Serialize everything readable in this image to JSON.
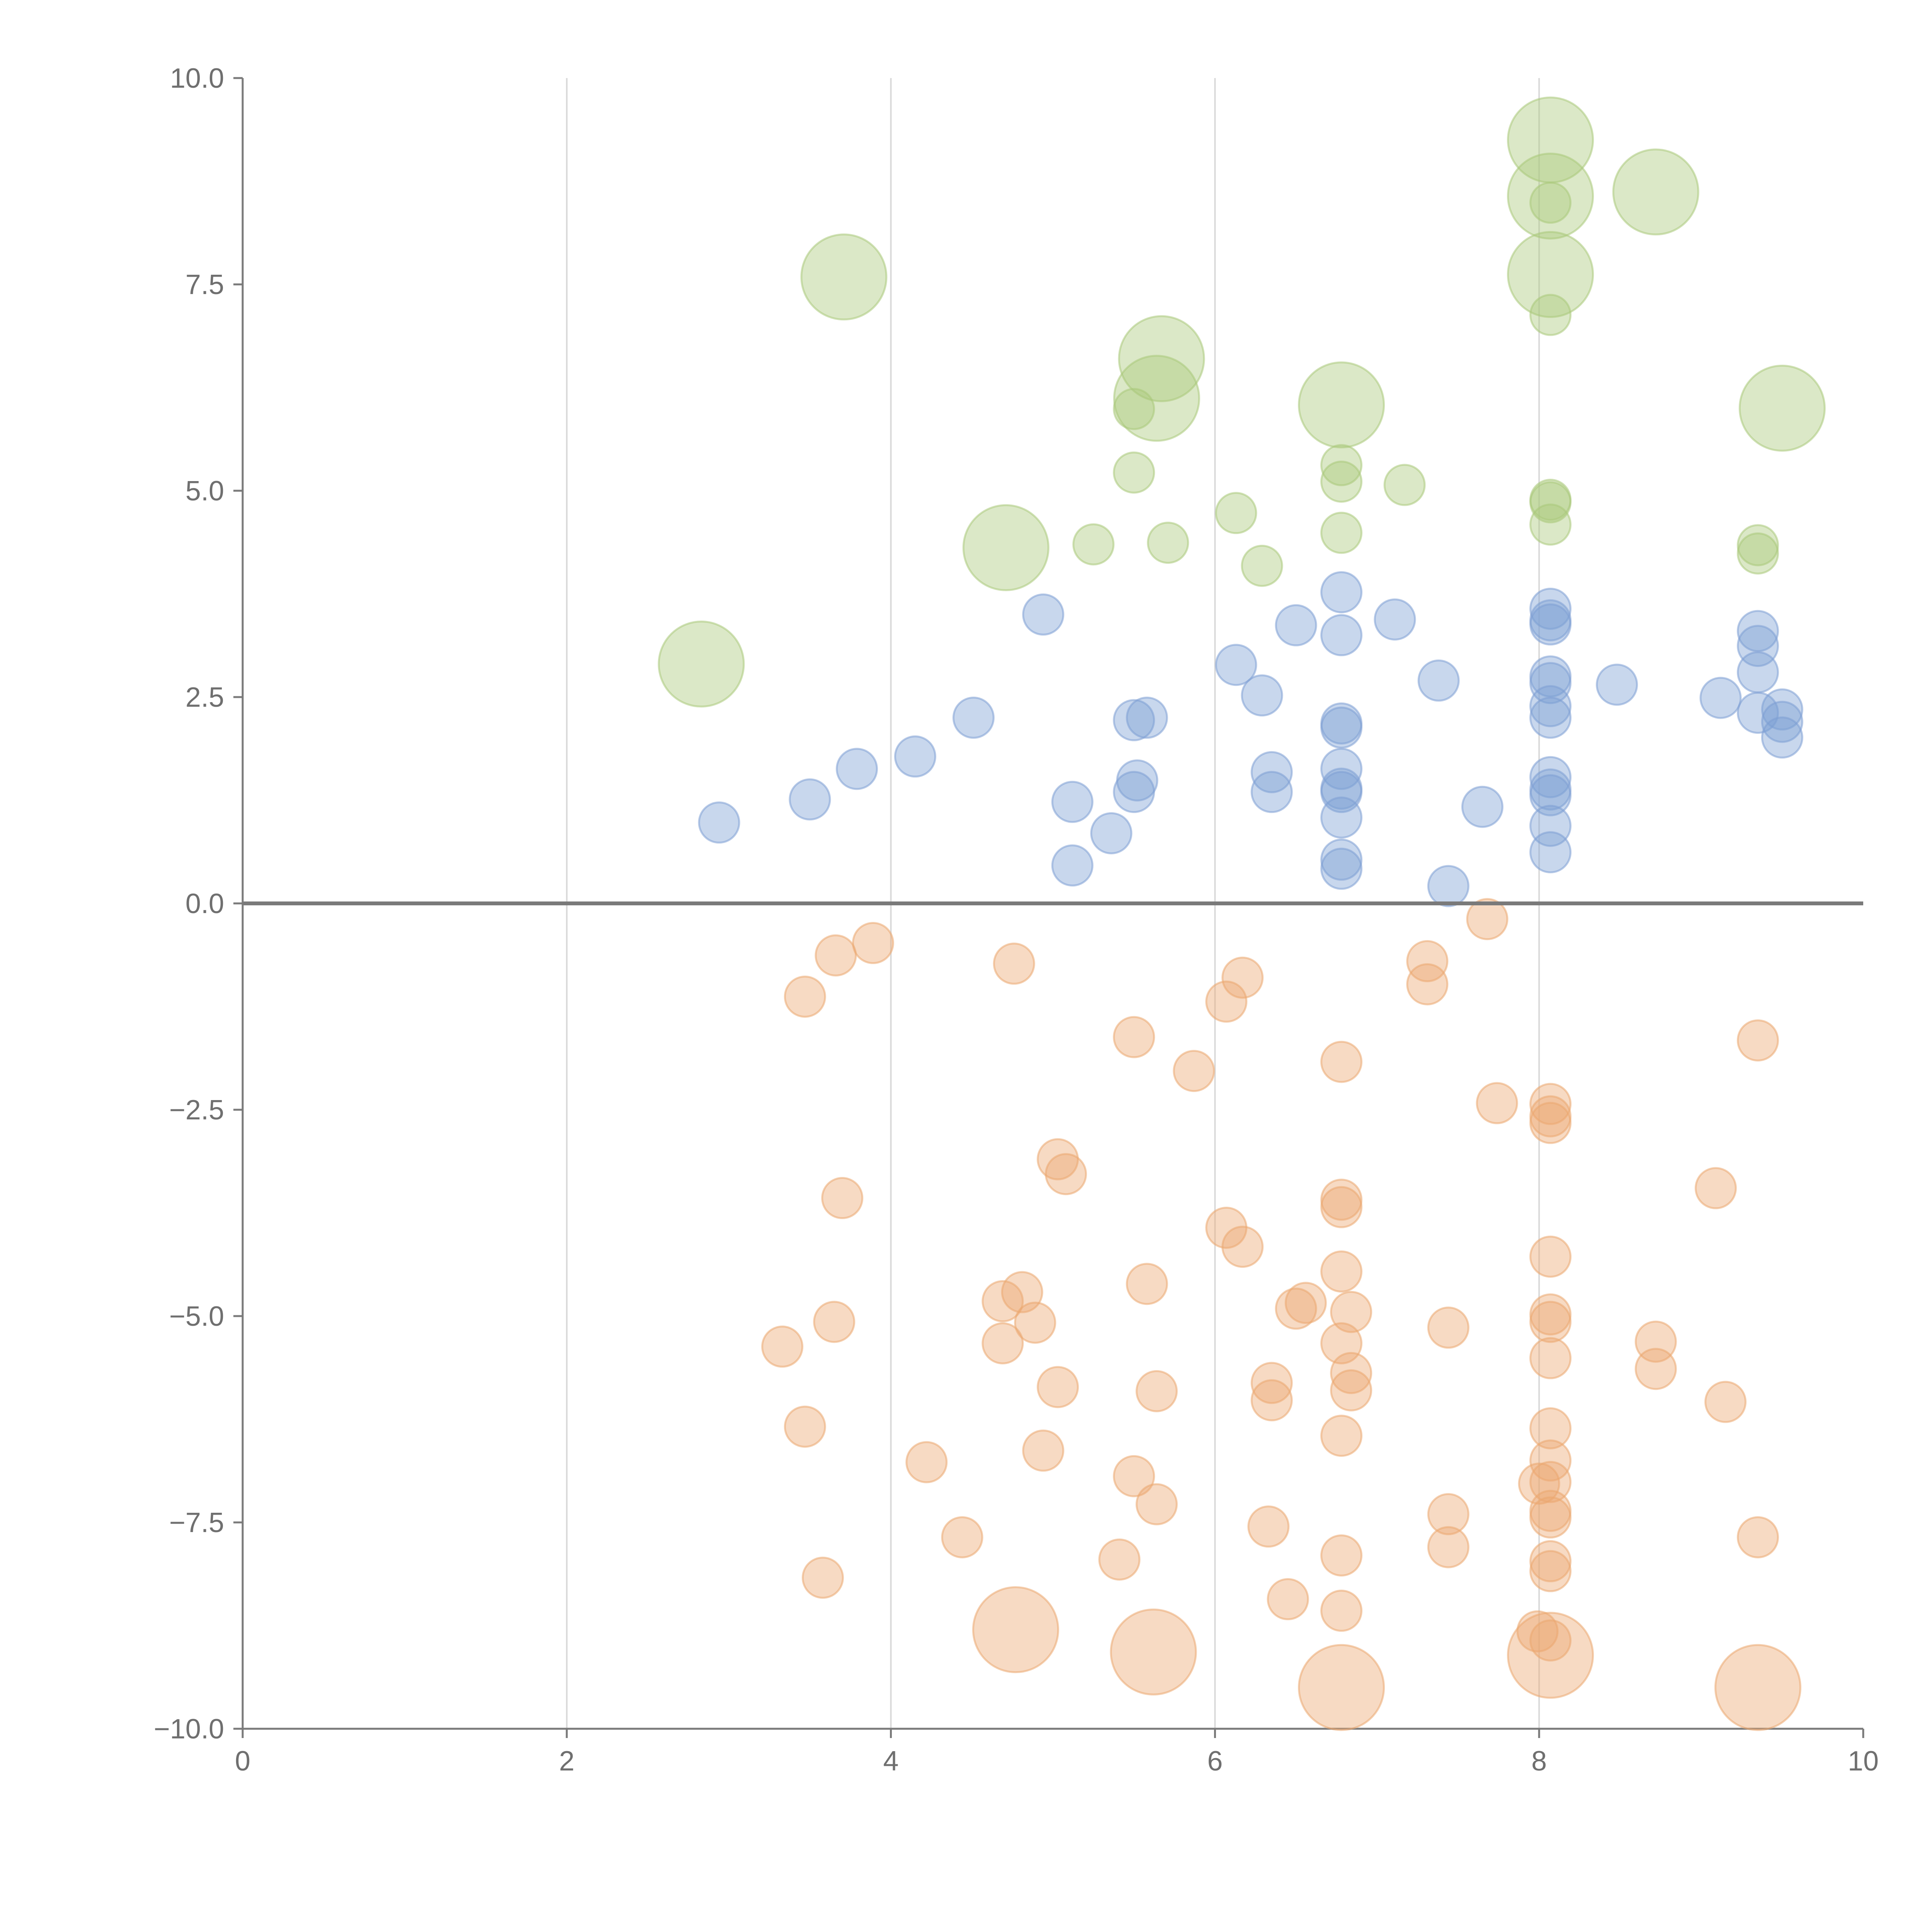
{
  "chart_data": {
    "type": "scatter",
    "title": "",
    "xlabel": "",
    "ylabel": "",
    "xlim": [
      0,
      10
    ],
    "ylim": [
      -10,
      10
    ],
    "x_ticks": [
      "0",
      "2",
      "4",
      "6",
      "8",
      "10"
    ],
    "x_tick_values": [
      0,
      2,
      4,
      6,
      8,
      10
    ],
    "y_ticks": [
      "10.0",
      "7.5",
      "5.0",
      "2.5",
      "0.0",
      "−2.5",
      "−5.0",
      "−7.5",
      "−10.0"
    ],
    "y_tick_values": [
      10,
      7.5,
      5,
      2.5,
      0,
      -2.5,
      -5,
      -7.5,
      -10
    ],
    "grid": "vertical",
    "reference_line": 0,
    "series": [
      {
        "name": "green",
        "color": "#a9c97a",
        "points": [
          [
            8.07,
            9.25,
            3
          ],
          [
            8.07,
            8.57,
            3
          ],
          [
            8.07,
            8.49,
            1
          ],
          [
            8.72,
            8.62,
            3
          ],
          [
            3.71,
            7.59,
            3
          ],
          [
            8.07,
            7.62,
            3
          ],
          [
            8.07,
            7.13,
            1
          ],
          [
            5.67,
            6.6,
            3
          ],
          [
            5.64,
            6.12,
            3
          ],
          [
            5.5,
            5.99,
            1
          ],
          [
            6.78,
            6.04,
            3
          ],
          [
            9.5,
            6.0,
            3
          ],
          [
            5.5,
            5.22,
            1
          ],
          [
            6.78,
            5.31,
            1
          ],
          [
            6.78,
            5.11,
            1
          ],
          [
            7.17,
            5.07,
            1
          ],
          [
            8.07,
            4.89,
            1
          ],
          [
            8.07,
            4.86,
            1
          ],
          [
            8.07,
            4.59,
            1
          ],
          [
            6.13,
            4.73,
            1
          ],
          [
            6.78,
            4.49,
            1
          ],
          [
            4.71,
            4.31,
            3
          ],
          [
            5.25,
            4.35,
            1
          ],
          [
            5.71,
            4.37,
            1
          ],
          [
            6.29,
            4.09,
            1
          ],
          [
            9.35,
            4.34,
            1
          ],
          [
            9.35,
            4.24,
            1
          ],
          [
            2.83,
            2.9,
            3
          ]
        ]
      },
      {
        "name": "blue",
        "color": "#7d9fd4",
        "points": [
          [
            6.78,
            3.77,
            1
          ],
          [
            6.78,
            3.25,
            1
          ],
          [
            6.5,
            3.37,
            1
          ],
          [
            7.11,
            3.44,
            1
          ],
          [
            4.94,
            3.5,
            1
          ],
          [
            8.07,
            3.57,
            1
          ],
          [
            8.07,
            3.43,
            1
          ],
          [
            8.07,
            3.38,
            1
          ],
          [
            9.35,
            3.3,
            1
          ],
          [
            9.35,
            3.12,
            1
          ],
          [
            6.13,
            2.89,
            1
          ],
          [
            7.38,
            2.7,
            1
          ],
          [
            8.07,
            2.75,
            1
          ],
          [
            8.07,
            2.67,
            1
          ],
          [
            8.48,
            2.65,
            1
          ],
          [
            9.35,
            2.8,
            1
          ],
          [
            6.29,
            2.52,
            1
          ],
          [
            9.12,
            2.49,
            1
          ],
          [
            8.07,
            2.39,
            1
          ],
          [
            8.07,
            2.25,
            1
          ],
          [
            9.5,
            2.35,
            1
          ],
          [
            9.35,
            2.31,
            1
          ],
          [
            9.5,
            2.2,
            1
          ],
          [
            9.5,
            2.01,
            1
          ],
          [
            4.51,
            2.25,
            1
          ],
          [
            5.5,
            2.22,
            1
          ],
          [
            5.58,
            2.25,
            1
          ],
          [
            6.78,
            2.18,
            1
          ],
          [
            6.78,
            2.13,
            1
          ],
          [
            4.15,
            1.78,
            1
          ],
          [
            3.79,
            1.63,
            1
          ],
          [
            3.5,
            1.26,
            1
          ],
          [
            2.94,
            0.98,
            1
          ],
          [
            5.12,
            1.23,
            1
          ],
          [
            5.52,
            1.49,
            1
          ],
          [
            5.5,
            1.35,
            1
          ],
          [
            6.35,
            1.59,
            1
          ],
          [
            6.35,
            1.35,
            1
          ],
          [
            6.78,
            1.63,
            1
          ],
          [
            6.78,
            1.39,
            1
          ],
          [
            6.78,
            1.35,
            1
          ],
          [
            6.78,
            1.04,
            1
          ],
          [
            7.65,
            1.17,
            1
          ],
          [
            8.07,
            1.53,
            1
          ],
          [
            8.07,
            1.38,
            1
          ],
          [
            8.07,
            1.31,
            1
          ],
          [
            8.07,
            0.94,
            1
          ],
          [
            5.36,
            0.85,
            1
          ],
          [
            5.12,
            0.46,
            1
          ],
          [
            6.78,
            0.53,
            1
          ],
          [
            6.78,
            0.42,
            1
          ],
          [
            8.07,
            0.62,
            1
          ],
          [
            7.44,
            0.21,
            1
          ]
        ]
      },
      {
        "name": "orange",
        "color": "#eba76f",
        "points": [
          [
            7.68,
            -0.19,
            1
          ],
          [
            3.89,
            -0.48,
            1
          ],
          [
            3.66,
            -0.63,
            1
          ],
          [
            3.47,
            -1.13,
            1
          ],
          [
            4.76,
            -0.73,
            1
          ],
          [
            7.31,
            -0.7,
            1
          ],
          [
            7.31,
            -0.98,
            1
          ],
          [
            6.17,
            -0.9,
            1
          ],
          [
            6.07,
            -1.19,
            1
          ],
          [
            5.5,
            -1.62,
            1
          ],
          [
            5.87,
            -2.03,
            1
          ],
          [
            6.78,
            -1.92,
            1
          ],
          [
            9.35,
            -1.66,
            1
          ],
          [
            7.74,
            -2.42,
            1
          ],
          [
            8.07,
            -2.43,
            1
          ],
          [
            8.07,
            -2.58,
            1
          ],
          [
            8.07,
            -2.66,
            1
          ],
          [
            5.03,
            -3.1,
            1
          ],
          [
            5.08,
            -3.28,
            1
          ],
          [
            3.7,
            -3.57,
            1
          ],
          [
            6.78,
            -3.59,
            1
          ],
          [
            6.78,
            -3.68,
            1
          ],
          [
            9.09,
            -3.45,
            1
          ],
          [
            6.07,
            -3.93,
            1
          ],
          [
            6.17,
            -4.16,
            1
          ],
          [
            8.07,
            -4.28,
            1
          ],
          [
            6.78,
            -4.46,
            1
          ],
          [
            5.58,
            -4.61,
            1
          ],
          [
            4.81,
            -4.71,
            1
          ],
          [
            4.69,
            -4.82,
            1
          ],
          [
            6.56,
            -4.84,
            1
          ],
          [
            6.5,
            -4.91,
            1
          ],
          [
            6.84,
            -4.95,
            1
          ],
          [
            8.07,
            -4.98,
            1
          ],
          [
            8.07,
            -5.07,
            1
          ],
          [
            3.65,
            -5.07,
            1
          ],
          [
            4.89,
            -5.08,
            1
          ],
          [
            7.44,
            -5.14,
            1
          ],
          [
            3.33,
            -5.37,
            1
          ],
          [
            4.69,
            -5.33,
            1
          ],
          [
            6.78,
            -5.33,
            1
          ],
          [
            8.72,
            -5.31,
            1
          ],
          [
            8.07,
            -5.51,
            1
          ],
          [
            8.72,
            -5.64,
            1
          ],
          [
            6.84,
            -5.69,
            1
          ],
          [
            5.03,
            -5.86,
            1
          ],
          [
            5.64,
            -5.91,
            1
          ],
          [
            6.35,
            -5.81,
            1
          ],
          [
            6.35,
            -6.02,
            1
          ],
          [
            6.84,
            -5.9,
            1
          ],
          [
            9.15,
            -6.04,
            1
          ],
          [
            3.47,
            -6.34,
            1
          ],
          [
            6.78,
            -6.45,
            1
          ],
          [
            8.07,
            -6.36,
            1
          ],
          [
            4.94,
            -6.63,
            1
          ],
          [
            4.22,
            -6.77,
            1
          ],
          [
            8.07,
            -6.75,
            1
          ],
          [
            5.5,
            -6.94,
            1
          ],
          [
            8.0,
            -7.03,
            1
          ],
          [
            8.07,
            -7.01,
            1
          ],
          [
            5.64,
            -7.28,
            1
          ],
          [
            8.07,
            -7.36,
            1
          ],
          [
            8.07,
            -7.44,
            1
          ],
          [
            7.44,
            -7.4,
            1
          ],
          [
            6.33,
            -7.55,
            1
          ],
          [
            4.44,
            -7.68,
            1
          ],
          [
            9.35,
            -7.68,
            1
          ],
          [
            7.44,
            -7.8,
            1
          ],
          [
            5.41,
            -7.95,
            1
          ],
          [
            6.78,
            -7.9,
            1
          ],
          [
            8.07,
            -7.97,
            1
          ],
          [
            8.07,
            -8.09,
            1
          ],
          [
            3.58,
            -8.17,
            1
          ],
          [
            6.45,
            -8.43,
            1
          ],
          [
            6.78,
            -8.57,
            1
          ],
          [
            7.99,
            -8.82,
            1
          ],
          [
            8.07,
            -8.93,
            1
          ],
          [
            4.77,
            -8.8,
            3
          ],
          [
            8.07,
            -9.11,
            3
          ],
          [
            5.62,
            -9.07,
            3
          ],
          [
            6.78,
            -9.5,
            3
          ],
          [
            9.35,
            -9.5,
            3
          ]
        ]
      }
    ]
  }
}
